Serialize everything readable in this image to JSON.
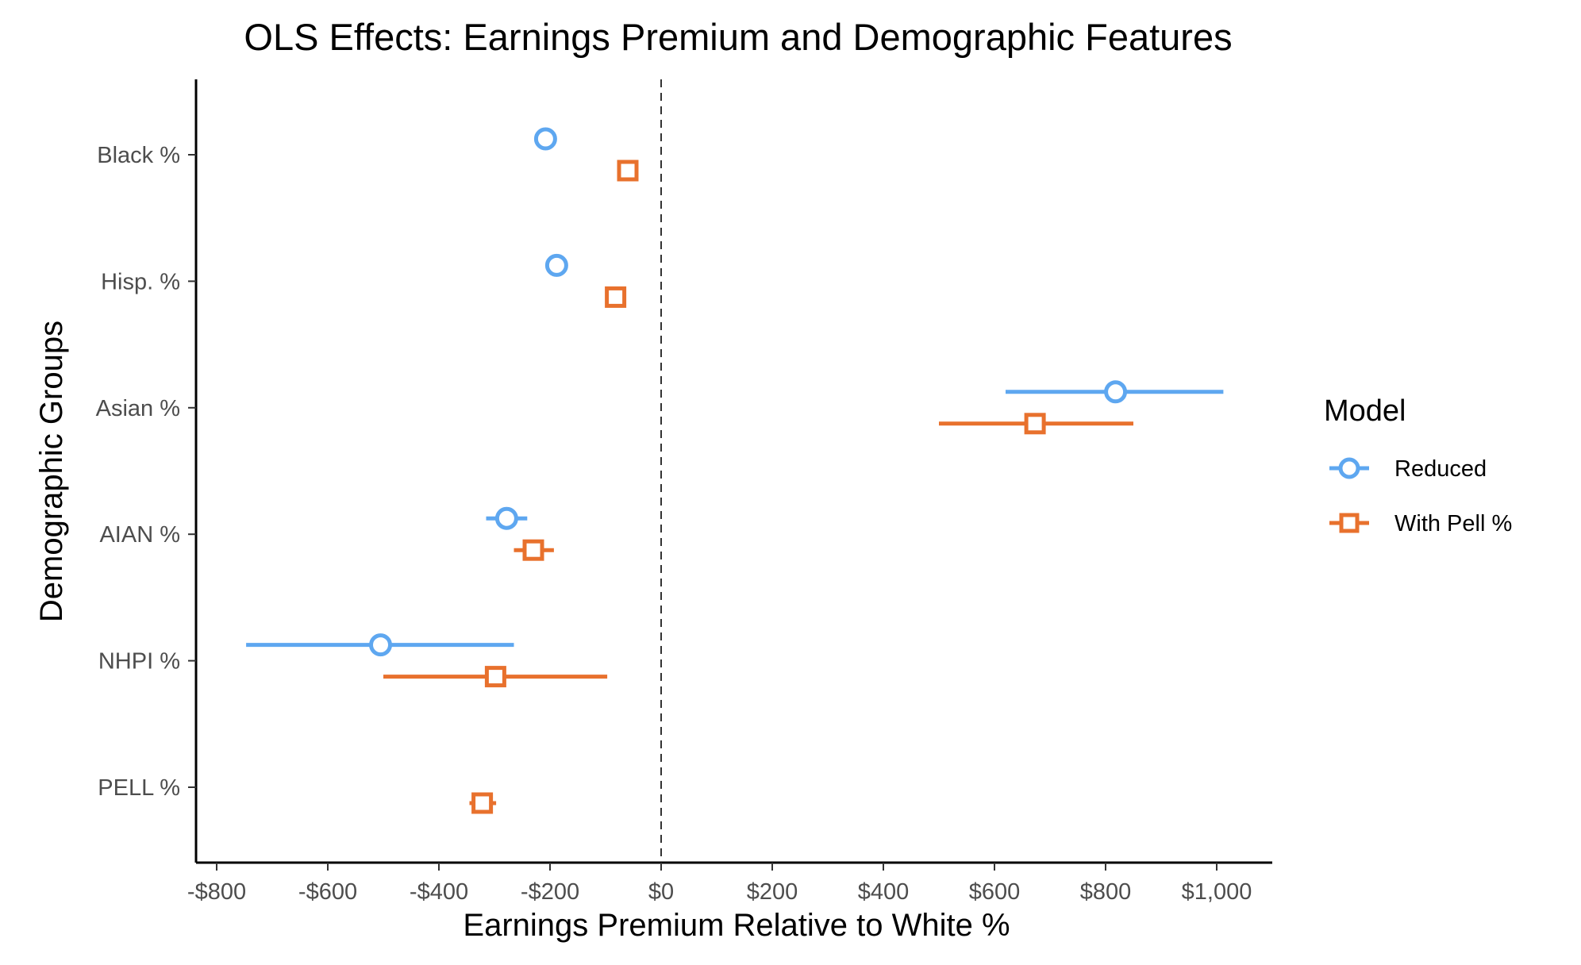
{
  "chart_data": {
    "type": "scatter",
    "title": "OLS Effects: Earnings Premium and Demographic Features",
    "xlabel": "Earnings Premium Relative to White %",
    "ylabel": "Demographic Groups",
    "xlim": [
      -850,
      1100
    ],
    "x_ticks": [
      -800,
      -600,
      -400,
      -200,
      0,
      200,
      400,
      600,
      800,
      1000
    ],
    "x_tick_labels": [
      "-$800",
      "-$600",
      "-$400",
      "-$200",
      "$0",
      "$200",
      "$400",
      "$600",
      "$800",
      "$1,000"
    ],
    "categories": [
      "Black %",
      "Hisp. %",
      "Asian %",
      "AIAN %",
      "NHPI %",
      "PELL %"
    ],
    "reference_line": {
      "x": 0,
      "style": "dashed"
    },
    "legend": {
      "title": "Model",
      "position": "right"
    },
    "grid": false,
    "series": [
      {
        "name": "Reduced",
        "color": "#5ea7f0",
        "marker": "circle",
        "points": [
          {
            "category": "Black %",
            "estimate": -208,
            "low": -213,
            "high": -203
          },
          {
            "category": "Hisp. %",
            "estimate": -188,
            "low": -193,
            "high": -183
          },
          {
            "category": "Asian %",
            "estimate": 818,
            "low": 620,
            "high": 1012
          },
          {
            "category": "AIAN %",
            "estimate": -278,
            "low": -315,
            "high": -241
          },
          {
            "category": "NHPI %",
            "estimate": -505,
            "low": -747,
            "high": -265
          }
        ]
      },
      {
        "name": "With Pell %",
        "color": "#e8712d",
        "marker": "square",
        "points": [
          {
            "category": "Black %",
            "estimate": -60,
            "low": -64,
            "high": -56
          },
          {
            "category": "Hisp. %",
            "estimate": -82,
            "low": -86,
            "high": -78
          },
          {
            "category": "Asian %",
            "estimate": 673,
            "low": 500,
            "high": 850
          },
          {
            "category": "AIAN %",
            "estimate": -230,
            "low": -265,
            "high": -193
          },
          {
            "category": "NHPI %",
            "estimate": -298,
            "low": -500,
            "high": -97
          },
          {
            "category": "PELL %",
            "estimate": -322,
            "low": -345,
            "high": -297
          }
        ]
      }
    ]
  }
}
